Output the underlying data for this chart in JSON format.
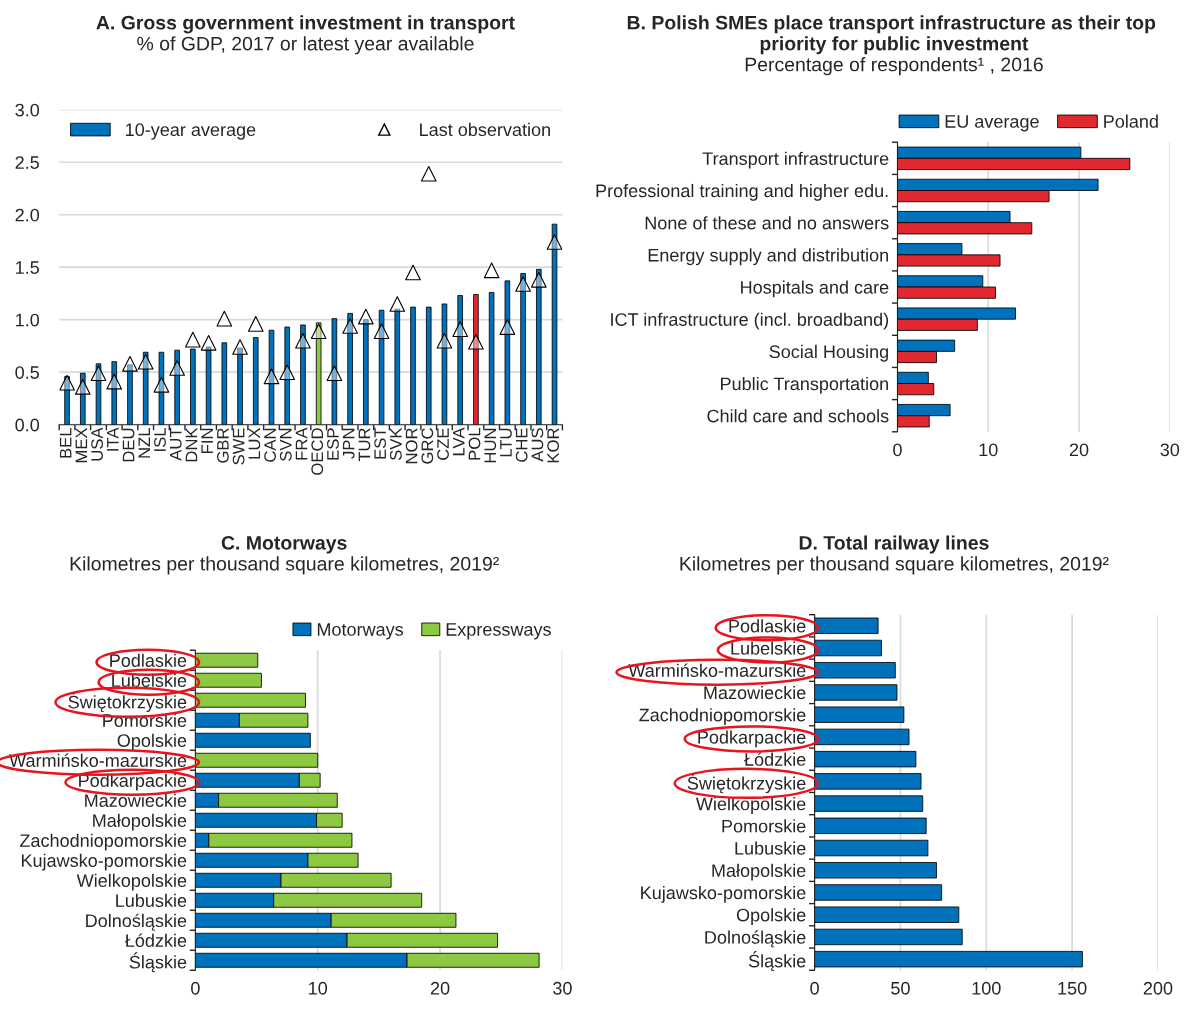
{
  "chart_data": [
    {
      "type": "bar",
      "title": "A. Gross government investment in transport",
      "subtitle": "% of GDP, 2017 or latest year available",
      "categories": [
        "BEL",
        "MEX",
        "USA",
        "ITA",
        "DEU",
        "NZL",
        "ISL",
        "AUT",
        "DNK",
        "FIN",
        "GBR",
        "SWE",
        "LUX",
        "CAN",
        "SVN",
        "FRA",
        "OECD",
        "ESP",
        "JPN",
        "TUR",
        "EST",
        "SVK",
        "NOR",
        "GRC",
        "CZE",
        "LVA",
        "POL",
        "HUN",
        "LTU",
        "CHE",
        "AUS",
        "KOR"
      ],
      "series": [
        {
          "name": "10-year average",
          "type": "bar",
          "color": "#0072bc",
          "colors": [
            "#0072bc",
            "#0072bc",
            "#0072bc",
            "#0072bc",
            "#0072bc",
            "#0072bc",
            "#0072bc",
            "#0072bc",
            "#0072bc",
            "#0072bc",
            "#0072bc",
            "#0072bc",
            "#0072bc",
            "#0072bc",
            "#0072bc",
            "#0072bc",
            "#8cc841",
            "#0072bc",
            "#0072bc",
            "#0072bc",
            "#0072bc",
            "#0072bc",
            "#0072bc",
            "#0072bc",
            "#0072bc",
            "#0072bc",
            "#e0282e",
            "#0072bc",
            "#0072bc",
            "#0072bc",
            "#0072bc",
            "#0072bc"
          ],
          "values": [
            0.46,
            0.49,
            0.58,
            0.6,
            0.57,
            0.69,
            0.69,
            0.71,
            0.72,
            0.74,
            0.78,
            0.73,
            0.83,
            0.9,
            0.93,
            0.95,
            0.97,
            1.01,
            1.06,
            1.0,
            1.09,
            1.1,
            1.12,
            1.12,
            1.15,
            1.23,
            1.24,
            1.26,
            1.37,
            1.44,
            1.48,
            1.91
          ]
        },
        {
          "name": "Last observation",
          "type": "scatter",
          "marker": "triangle",
          "color": "#ffffff",
          "values": [
            0.4,
            0.36,
            0.49,
            0.41,
            0.58,
            0.6,
            0.38,
            0.54,
            0.81,
            0.78,
            1.01,
            0.74,
            0.96,
            0.46,
            0.5,
            0.8,
            0.89,
            0.49,
            0.94,
            1.03,
            0.89,
            1.15,
            1.45,
            2.39,
            0.8,
            0.91,
            0.79,
            1.47,
            0.93,
            1.34,
            1.38,
            1.74
          ]
        }
      ],
      "ylim": [
        0,
        3
      ],
      "yticks": [
        {
          "value": 0,
          "label": "0.0"
        },
        {
          "value": 0.5,
          "label": "0.5"
        },
        {
          "value": 1,
          "label": "1.0"
        },
        {
          "value": 1.5,
          "label": "1.5"
        },
        {
          "value": 2,
          "label": "2.0"
        },
        {
          "value": 2.5,
          "label": "2.5"
        },
        {
          "value": 3,
          "label": "3.0"
        }
      ],
      "grid": "y",
      "legend": "top"
    },
    {
      "type": "bar",
      "orientation": "horizontal",
      "title": "B. Polish SMEs place transport infrastructure as their top  priority for public investment",
      "subtitle": "Percentage of respondents¹ , 2016",
      "categories": [
        "Transport infrastructure",
        "Professional training and higher edu.",
        "None of these and no answers",
        "Energy supply and distribution",
        "Hospitals and care",
        "ICT infrastructure (incl. broadband)",
        "Social Housing",
        "Public Transportation",
        "Child care and schools"
      ],
      "series": [
        {
          "name": "EU average",
          "color": "#0072bc",
          "values": [
            20.2,
            22.1,
            12.4,
            7.1,
            9.4,
            13.0,
            6.3,
            3.4,
            5.8
          ]
        },
        {
          "name": "Poland",
          "color": "#e0282e",
          "values": [
            25.6,
            16.7,
            14.8,
            11.3,
            10.8,
            8.8,
            4.3,
            4.0,
            3.5
          ]
        }
      ],
      "xlim": [
        0,
        30
      ],
      "xticks": [
        0,
        10,
        20,
        30
      ],
      "grid": "x",
      "legend": "top right"
    },
    {
      "type": "bar",
      "orientation": "horizontal",
      "stacked": true,
      "title": "C. Motorways",
      "subtitle": "Kilometres per thousand square kilometres, 2019²",
      "categories": [
        "Podlaskie",
        "Lubelskie",
        "Świętokrzyskie",
        "Pomorskie",
        "Opolskie",
        "Warmińsko-mazurskie",
        "Podkarpackie",
        "Mazowieckie",
        "Małopolskie",
        "Zachodniopomorskie",
        "Kujawsko-pomorskie",
        "Wielkopolskie",
        "Lubuskie",
        "Dolnośląskie",
        "Łódzkie",
        "Śląskie"
      ],
      "series": [
        {
          "name": "Motorways",
          "color": "#0072bc",
          "values": [
            null,
            null,
            null,
            3.6,
            9.4,
            null,
            8.5,
            1.9,
            9.9,
            1.1,
            9.2,
            7.0,
            6.4,
            11.1,
            12.4,
            17.3
          ]
        },
        {
          "name": "Expressways",
          "color": "#8cc841",
          "values": [
            5.1,
            5.4,
            9.0,
            5.6,
            null,
            10.0,
            1.7,
            9.7,
            2.1,
            11.7,
            4.1,
            9.0,
            12.1,
            10.2,
            12.3,
            10.8
          ]
        }
      ],
      "xlim": [
        0,
        30
      ],
      "xticks": [
        0,
        10,
        20,
        30
      ],
      "grid": "x",
      "legend": "top right"
    },
    {
      "type": "bar",
      "orientation": "horizontal",
      "title": "D. Total railway lines",
      "subtitle": "Kilometres per thousand square kilometres, 2019²",
      "categories": [
        "Podlaskie",
        "Lubelskie",
        "Warmińsko-mazurskie",
        "Mazowieckie",
        "Zachodniopomorskie",
        "Podkarpackie",
        "Łódzkie",
        "Świętokrzyskie",
        "Wielkopolskie",
        "Pomorskie",
        "Lubuskie",
        "Małopolskie",
        "Kujawsko-pomorskie",
        "Opolskie",
        "Dolnośląskie",
        "Śląskie"
      ],
      "series": [
        {
          "color": "#0072bc",
          "values": [
            37,
            39,
            47,
            48,
            52,
            55,
            59,
            62,
            63,
            65,
            66,
            71,
            74,
            84,
            86,
            156
          ]
        }
      ],
      "xlim": [
        0,
        200
      ],
      "xticks": [
        0,
        50,
        100,
        150,
        200
      ],
      "grid": "x"
    }
  ]
}
